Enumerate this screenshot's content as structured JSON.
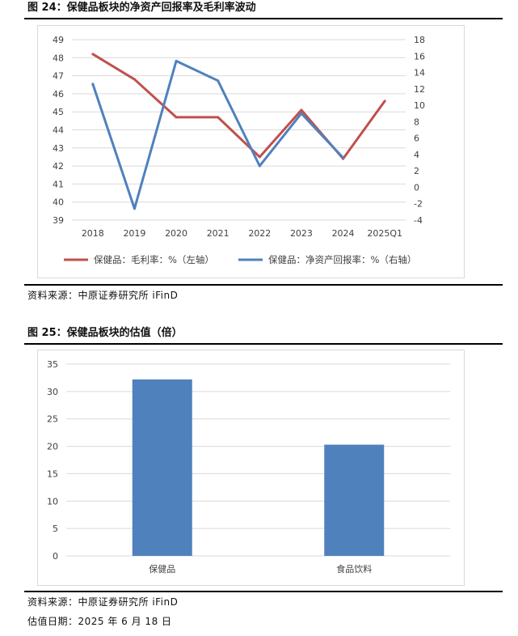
{
  "figures": [
    {
      "title": "图 24：保健品板块的净资产回报率及毛利率波动",
      "source": "资料来源：中原证券研究所 iFinD"
    },
    {
      "title": "图 25：保健品板块的估值（倍）",
      "source": "资料来源：中原证券研究所 iFinD",
      "note": "估值日期：2025 年 6 月 18 日"
    }
  ],
  "colors": {
    "gross_margin": "#c0504d",
    "roe": "#4f81bd",
    "bar": "#4f81bd",
    "grid": "#d9d9d9",
    "text": "#404040"
  },
  "chart_data": [
    {
      "type": "line",
      "title": "",
      "categories": [
        "2018",
        "2019",
        "2020",
        "2021",
        "2022",
        "2023",
        "2024",
        "2025Q1"
      ],
      "y_left": {
        "ticks": [
          "39",
          "40",
          "41",
          "42",
          "43",
          "44",
          "45",
          "46",
          "47",
          "48",
          "49"
        ],
        "ylim": [
          39,
          49
        ]
      },
      "y_right": {
        "ticks": [
          "-4",
          "-2",
          "0",
          "2",
          "4",
          "6",
          "8",
          "10",
          "12",
          "14",
          "16",
          "18"
        ],
        "ylim": [
          -4,
          18
        ]
      },
      "series": [
        {
          "name": "保健品：毛利率：%（左轴）",
          "axis": "left",
          "values": [
            48.2,
            46.8,
            44.7,
            44.7,
            42.5,
            45.1,
            42.4,
            45.6
          ]
        },
        {
          "name": "保健品：净资产回报率：%（右轴）",
          "axis": "right",
          "values": [
            12.6,
            -2.6,
            15.4,
            13.0,
            2.6,
            9.0,
            3.6,
            null
          ]
        }
      ],
      "legend": "bottom",
      "grid": true
    },
    {
      "type": "bar",
      "title": "",
      "categories": [
        "保健品",
        "食品饮料"
      ],
      "values": [
        32.2,
        20.3
      ],
      "y_ticks": [
        "0",
        "5",
        "10",
        "15",
        "20",
        "25",
        "30",
        "35"
      ],
      "ylim": [
        0,
        35
      ],
      "grid": true
    }
  ]
}
